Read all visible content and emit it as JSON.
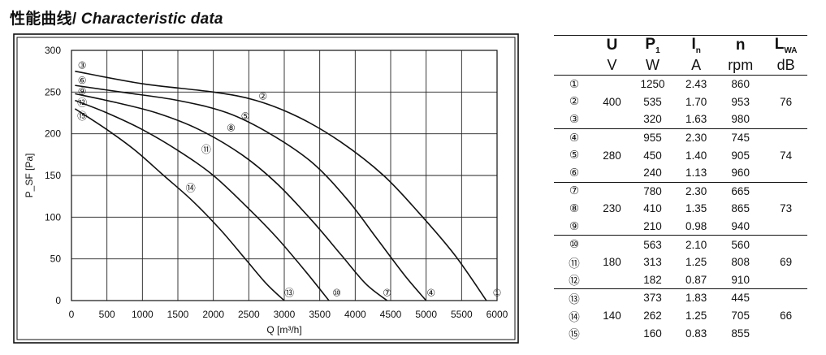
{
  "title": {
    "cn": "性能曲线",
    "sep": "/",
    "en": "Characteristic data"
  },
  "chart_data": {
    "type": "line",
    "xlabel": "Q [m³/h]",
    "ylabel": "P_SF [Pa]",
    "xlim": [
      0,
      6000
    ],
    "ylim": [
      0,
      300
    ],
    "x_ticks": [
      "0",
      "500",
      "1000",
      "1500",
      "2000",
      "2500",
      "3000",
      "3500",
      "4000",
      "4500",
      "5000",
      "5500",
      "6000"
    ],
    "y_ticks": [
      "0",
      "50",
      "100",
      "150",
      "200",
      "250",
      "300"
    ],
    "grid": true,
    "series": [
      {
        "name": "③",
        "points": [
          [
            50,
            275
          ],
          [
            1000,
            260
          ],
          [
            2000,
            250
          ],
          [
            2600,
            240
          ],
          [
            3200,
            220
          ],
          [
            3800,
            190
          ],
          [
            4400,
            150
          ],
          [
            4900,
            105
          ],
          [
            5400,
            55
          ],
          [
            5850,
            0
          ]
        ]
      },
      {
        "name": "⑥",
        "points": [
          [
            50,
            258
          ],
          [
            700,
            250
          ],
          [
            1500,
            240
          ],
          [
            2200,
            225
          ],
          [
            2800,
            200
          ],
          [
            3400,
            165
          ],
          [
            3900,
            120
          ],
          [
            4300,
            75
          ],
          [
            4700,
            30
          ],
          [
            5000,
            0
          ]
        ]
      },
      {
        "name": "⑨",
        "points": [
          [
            50,
            248
          ],
          [
            600,
            238
          ],
          [
            1200,
            225
          ],
          [
            1800,
            205
          ],
          [
            2400,
            175
          ],
          [
            2900,
            140
          ],
          [
            3400,
            95
          ],
          [
            3800,
            55
          ],
          [
            4150,
            20
          ],
          [
            4450,
            0
          ]
        ]
      },
      {
        "name": "⑫",
        "points": [
          [
            50,
            240
          ],
          [
            500,
            225
          ],
          [
            1000,
            205
          ],
          [
            1500,
            180
          ],
          [
            2000,
            150
          ],
          [
            2500,
            110
          ],
          [
            2900,
            75
          ],
          [
            3300,
            35
          ],
          [
            3630,
            0
          ]
        ]
      },
      {
        "name": "⑮",
        "points": [
          [
            50,
            230
          ],
          [
            500,
            205
          ],
          [
            900,
            180
          ],
          [
            1300,
            150
          ],
          [
            1700,
            120
          ],
          [
            2100,
            85
          ],
          [
            2450,
            50
          ],
          [
            2750,
            20
          ],
          [
            3000,
            0
          ]
        ]
      }
    ],
    "curve_labels": [
      {
        "label": "③",
        "x": 150,
        "y": 283
      },
      {
        "label": "⑥",
        "x": 150,
        "y": 265
      },
      {
        "label": "⑨",
        "x": 150,
        "y": 252
      },
      {
        "label": "⑫",
        "x": 150,
        "y": 238
      },
      {
        "label": "⑮",
        "x": 150,
        "y": 222
      },
      {
        "label": "②",
        "x": 2700,
        "y": 246
      },
      {
        "label": "⑤",
        "x": 2450,
        "y": 222
      },
      {
        "label": "⑧",
        "x": 2250,
        "y": 208
      },
      {
        "label": "⑪",
        "x": 1900,
        "y": 182
      },
      {
        "label": "⑭",
        "x": 1680,
        "y": 136
      },
      {
        "label": "⑬",
        "x": 3070,
        "y": 10
      },
      {
        "label": "⑩",
        "x": 3740,
        "y": 10
      },
      {
        "label": "⑦",
        "x": 4450,
        "y": 10
      },
      {
        "label": "④",
        "x": 5070,
        "y": 10
      },
      {
        "label": "①",
        "x": 6000,
        "y": 10
      }
    ]
  },
  "table": {
    "headers": [
      {
        "sym": "U",
        "sub": ""
      },
      {
        "sym": "P",
        "sub": "1"
      },
      {
        "sym": "I",
        "sub": "n"
      },
      {
        "sym": "n",
        "sub": ""
      },
      {
        "sym": "L",
        "sub": "WA"
      }
    ],
    "units": [
      "V",
      "W",
      "A",
      "rpm",
      "dB"
    ],
    "groups": [
      {
        "U": "400",
        "L": "76",
        "rows": [
          {
            "idx": "①",
            "P": "1250",
            "I": "2.43",
            "n": "860"
          },
          {
            "idx": "②",
            "P": "535",
            "I": "1.70",
            "n": "953"
          },
          {
            "idx": "③",
            "P": "320",
            "I": "1.63",
            "n": "980"
          }
        ]
      },
      {
        "U": "280",
        "L": "74",
        "rows": [
          {
            "idx": "④",
            "P": "955",
            "I": "2.30",
            "n": "745"
          },
          {
            "idx": "⑤",
            "P": "450",
            "I": "1.40",
            "n": "905"
          },
          {
            "idx": "⑥",
            "P": "240",
            "I": "1.13",
            "n": "960"
          }
        ]
      },
      {
        "U": "230",
        "L": "73",
        "rows": [
          {
            "idx": "⑦",
            "P": "780",
            "I": "2.30",
            "n": "665"
          },
          {
            "idx": "⑧",
            "P": "410",
            "I": "1.35",
            "n": "865"
          },
          {
            "idx": "⑨",
            "P": "210",
            "I": "0.98",
            "n": "940"
          }
        ]
      },
      {
        "U": "180",
        "L": "69",
        "rows": [
          {
            "idx": "⑩",
            "P": "563",
            "I": "2.10",
            "n": "560"
          },
          {
            "idx": "⑪",
            "P": "313",
            "I": "1.25",
            "n": "808"
          },
          {
            "idx": "⑫",
            "P": "182",
            "I": "0.87",
            "n": "910"
          }
        ]
      },
      {
        "U": "140",
        "L": "66",
        "rows": [
          {
            "idx": "⑬",
            "P": "373",
            "I": "1.83",
            "n": "445"
          },
          {
            "idx": "⑭",
            "P": "262",
            "I": "1.25",
            "n": "705"
          },
          {
            "idx": "⑮",
            "P": "160",
            "I": "0.83",
            "n": "855"
          }
        ]
      }
    ]
  }
}
